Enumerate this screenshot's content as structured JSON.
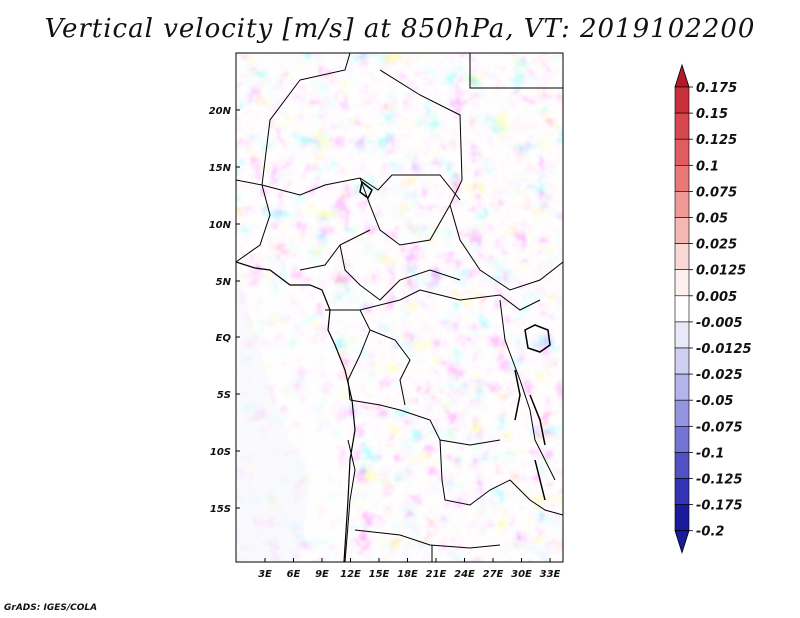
{
  "title": "Vertical velocity [m/s] at 850hPa, VT: 2019102200",
  "map": {
    "lon_ticks": [
      "3E",
      "6E",
      "9E",
      "12E",
      "15E",
      "18E",
      "21E",
      "24E",
      "27E",
      "30E",
      "33E"
    ],
    "lat_ticks": [
      "20N",
      "15N",
      "10N",
      "5N",
      "EQ",
      "5S",
      "10S",
      "15S"
    ]
  },
  "colorbar": {
    "labels": [
      "0.175",
      "0.15",
      "0.125",
      "0.1",
      "0.075",
      "0.05",
      "0.025",
      "0.0125",
      "0.005",
      "-0.005",
      "-0.0125",
      "-0.025",
      "-0.05",
      "-0.075",
      "-0.1",
      "-0.125",
      "-0.175",
      "-0.2"
    ],
    "colors": [
      "#b4182a",
      "#c8303c",
      "#d6474f",
      "#e05c60",
      "#e97876",
      "#ef9a96",
      "#f4b8b4",
      "#f9d8d5",
      "#fdf0ee",
      "#ffffff",
      "#e8e8f8",
      "#cfcff2",
      "#b4b4ec",
      "#9494e0",
      "#7474d4",
      "#5252c4",
      "#3434b4",
      "#1a1a9c",
      "#0a0a80"
    ],
    "cap_top_color": "#b4182a",
    "cap_bottom_color": "#1a1a9c"
  },
  "credit": "GrADS: IGES/COLA"
}
